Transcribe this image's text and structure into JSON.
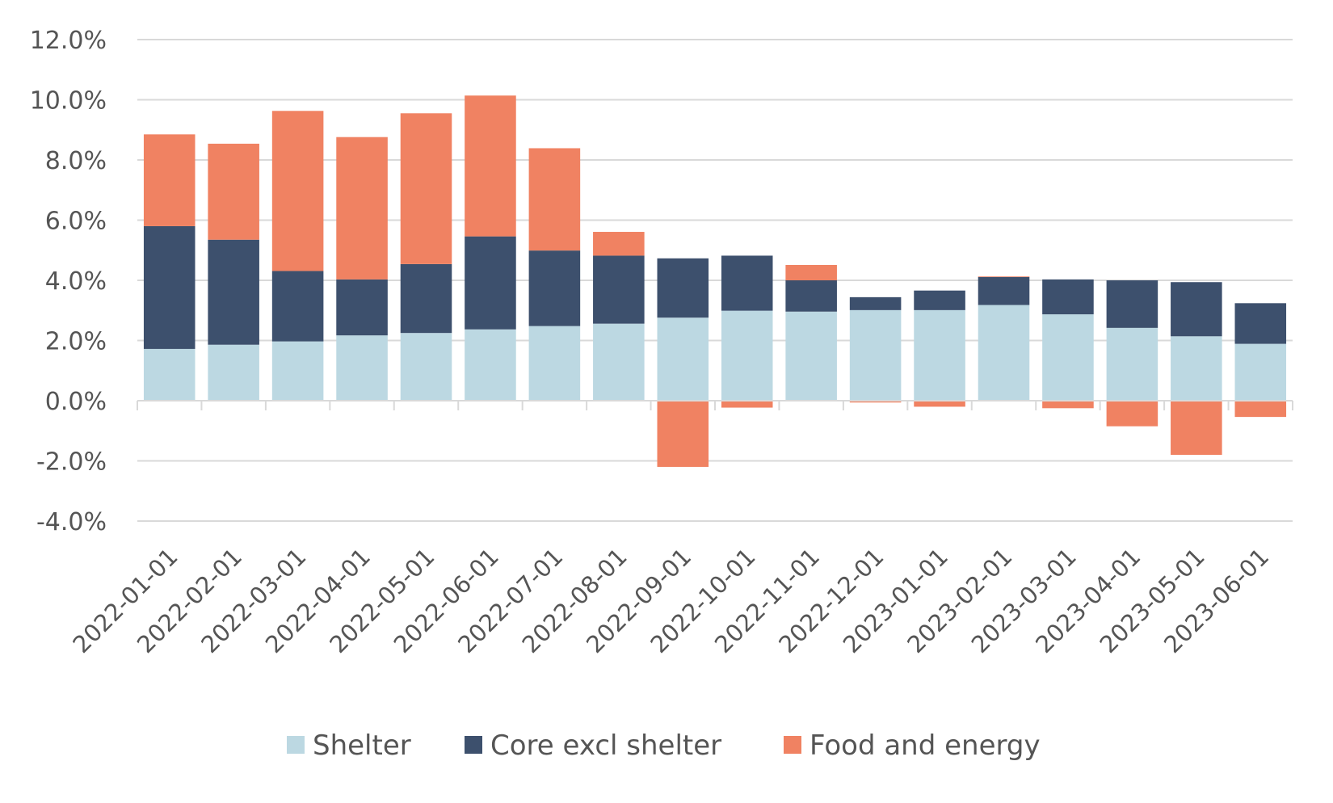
{
  "chart_data": {
    "type": "bar",
    "stacked": true,
    "title": "",
    "xlabel": "",
    "ylabel": "",
    "ylim": [
      -4,
      12
    ],
    "yticks": [
      -4,
      -2,
      0,
      2,
      4,
      6,
      8,
      10,
      12
    ],
    "ytick_format": "percent_1dp",
    "grid": true,
    "legend_position": "bottom",
    "categories": [
      "2022-01-01",
      "2022-02-01",
      "2022-03-01",
      "2022-04-01",
      "2022-05-01",
      "2022-06-01",
      "2022-07-01",
      "2022-08-01",
      "2022-09-01",
      "2022-10-01",
      "2022-11-01",
      "2022-12-01",
      "2023-01-01",
      "2023-02-01",
      "2023-03-01",
      "2023-04-01",
      "2023-05-01",
      "2023-06-01"
    ],
    "series": [
      {
        "name": "Shelter",
        "color": "#bcd8e2",
        "values": [
          1.72,
          1.86,
          1.97,
          2.17,
          2.25,
          2.37,
          2.48,
          2.56,
          2.76,
          2.99,
          2.96,
          3.01,
          3.01,
          3.18,
          2.87,
          2.42,
          2.14,
          1.89
        ]
      },
      {
        "name": "Core excl shelter",
        "color": "#3d506d",
        "values": [
          4.08,
          3.49,
          2.34,
          1.86,
          2.29,
          3.09,
          2.51,
          2.26,
          1.97,
          1.83,
          1.04,
          0.43,
          0.65,
          0.93,
          1.16,
          1.58,
          1.8,
          1.35
        ]
      },
      {
        "name": "Food and energy",
        "color": "#f08262",
        "values": [
          3.05,
          3.19,
          5.32,
          4.73,
          5.01,
          4.68,
          3.4,
          0.79,
          -2.2,
          -0.23,
          0.51,
          -0.06,
          -0.2,
          0.02,
          -0.25,
          -0.85,
          -1.8,
          -0.54
        ]
      }
    ]
  }
}
